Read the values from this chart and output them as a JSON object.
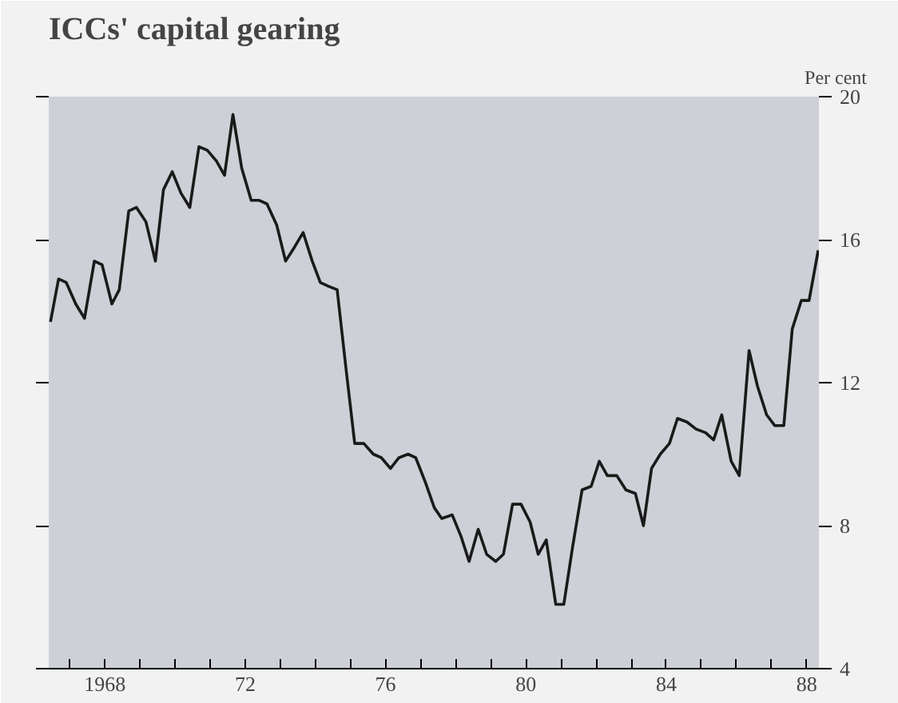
{
  "chart_data": {
    "type": "line",
    "title": "ICCs' capital gearing",
    "ylabel": "Per cent",
    "x": [
      1966.45,
      1966.68,
      1966.9,
      1967.17,
      1967.42,
      1967.7,
      1967.92,
      1968.2,
      1968.41,
      1968.68,
      1968.9,
      1969.17,
      1969.44,
      1969.67,
      1969.92,
      1970.17,
      1970.42,
      1970.68,
      1970.92,
      1971.18,
      1971.41,
      1971.65,
      1971.9,
      1972.17,
      1972.4,
      1972.62,
      1972.9,
      1973.15,
      1973.41,
      1973.65,
      1973.91,
      1974.14,
      1974.36,
      1974.62,
      1974.86,
      1975.12,
      1975.38,
      1975.65,
      1975.88,
      1976.14,
      1976.38,
      1976.64,
      1976.86,
      1977.14,
      1977.39,
      1977.6,
      1977.9,
      1978.15,
      1978.38,
      1978.64,
      1978.88,
      1979.14,
      1979.36,
      1979.62,
      1979.86,
      1980.12,
      1980.35,
      1980.58,
      1980.85,
      1981.08,
      1981.33,
      1981.6,
      1981.86,
      1982.09,
      1982.32,
      1982.59,
      1982.85,
      1983.12,
      1983.35,
      1983.58,
      1983.83,
      1984.09,
      1984.32,
      1984.59,
      1984.85,
      1985.12,
      1985.35,
      1985.58,
      1985.85,
      1986.08,
      1986.36,
      1986.6,
      1986.86,
      1987.09,
      1987.35,
      1987.59,
      1987.85,
      1988.07,
      1988.33
    ],
    "series": [
      {
        "color": "#1a1a1a",
        "values": [
          13.7,
          14.9,
          14.8,
          14.2,
          13.8,
          15.4,
          15.3,
          14.2,
          14.6,
          16.8,
          16.9,
          16.5,
          15.4,
          17.4,
          17.9,
          17.3,
          16.9,
          18.6,
          18.5,
          18.2,
          17.8,
          19.5,
          18.0,
          17.1,
          17.1,
          17.0,
          16.4,
          15.4,
          15.8,
          16.2,
          15.4,
          14.8,
          14.7,
          14.6,
          12.5,
          10.3,
          10.3,
          10.0,
          9.9,
          9.6,
          9.9,
          10.0,
          9.9,
          9.2,
          8.5,
          8.2,
          8.3,
          7.7,
          7.0,
          7.9,
          7.2,
          7.0,
          7.2,
          8.6,
          8.6,
          8.1,
          7.2,
          7.6,
          5.8,
          5.8,
          7.4,
          9.0,
          9.1,
          9.8,
          9.4,
          9.4,
          9.0,
          8.9,
          8.0,
          9.6,
          10.0,
          10.3,
          11.0,
          10.9,
          10.7,
          10.6,
          10.4,
          11.1,
          9.8,
          9.4,
          12.9,
          11.9,
          11.1,
          10.8,
          10.8,
          13.5,
          14.3,
          14.3,
          15.7
        ]
      }
    ],
    "xlim": [
      1966.4,
      1988.35
    ],
    "xticks": [
      {
        "value": 1967,
        "label": null
      },
      {
        "value": 1968,
        "label": "1968"
      },
      {
        "value": 1969,
        "label": null
      },
      {
        "value": 1970,
        "label": null
      },
      {
        "value": 1971,
        "label": null
      },
      {
        "value": 1972,
        "label": "72"
      },
      {
        "value": 1973,
        "label": null
      },
      {
        "value": 1974,
        "label": null
      },
      {
        "value": 1975,
        "label": null
      },
      {
        "value": 1976,
        "label": "76"
      },
      {
        "value": 1977,
        "label": null
      },
      {
        "value": 1978,
        "label": null
      },
      {
        "value": 1979,
        "label": null
      },
      {
        "value": 1980,
        "label": "80"
      },
      {
        "value": 1981,
        "label": null
      },
      {
        "value": 1982,
        "label": null
      },
      {
        "value": 1983,
        "label": null
      },
      {
        "value": 1984,
        "label": "84"
      },
      {
        "value": 1985,
        "label": null
      },
      {
        "value": 1986,
        "label": null
      },
      {
        "value": 1987,
        "label": null
      },
      {
        "value": 1988,
        "label": "88"
      }
    ],
    "ylim": [
      4,
      20
    ],
    "yticks": [
      4,
      8,
      12,
      16,
      20
    ],
    "grid": false
  }
}
